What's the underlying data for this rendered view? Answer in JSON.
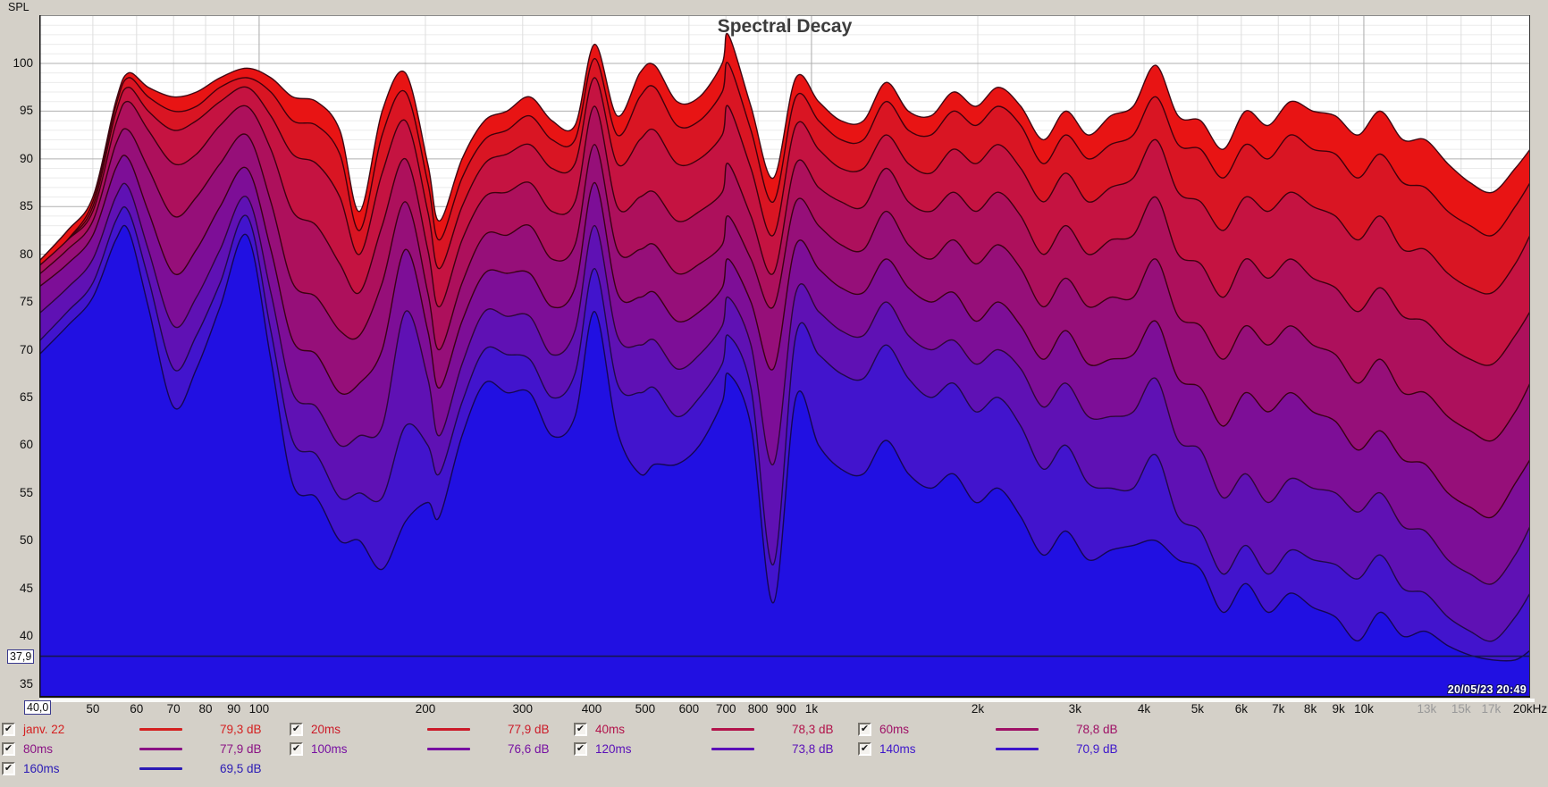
{
  "window": {
    "y_axis_title": "SPL",
    "title": "Spectral Decay",
    "timestamp": "20/05/23 20:49"
  },
  "cursor": {
    "x_label": "40,0",
    "y_label": "37,9",
    "y_db": 37.9,
    "x_freq": 40
  },
  "axes": {
    "y_ticks": [
      {
        "db": 100,
        "label": "100"
      },
      {
        "db": 95,
        "label": "95"
      },
      {
        "db": 90,
        "label": "90"
      },
      {
        "db": 85,
        "label": "85"
      },
      {
        "db": 80,
        "label": "80"
      },
      {
        "db": 75,
        "label": "75"
      },
      {
        "db": 70,
        "label": "70"
      },
      {
        "db": 65,
        "label": "65"
      },
      {
        "db": 60,
        "label": "60"
      },
      {
        "db": 55,
        "label": "55"
      },
      {
        "db": 50,
        "label": "50"
      },
      {
        "db": 45,
        "label": "45"
      },
      {
        "db": 40,
        "label": "40"
      },
      {
        "db": 35,
        "label": "35"
      }
    ],
    "x_ticks": [
      {
        "f": 50,
        "label": "50"
      },
      {
        "f": 60,
        "label": "60"
      },
      {
        "f": 70,
        "label": "70"
      },
      {
        "f": 80,
        "label": "80"
      },
      {
        "f": 90,
        "label": "90"
      },
      {
        "f": 100,
        "label": "100"
      },
      {
        "f": 200,
        "label": "200"
      },
      {
        "f": 300,
        "label": "300"
      },
      {
        "f": 400,
        "label": "400"
      },
      {
        "f": 500,
        "label": "500"
      },
      {
        "f": 600,
        "label": "600"
      },
      {
        "f": 700,
        "label": "700"
      },
      {
        "f": 800,
        "label": "800"
      },
      {
        "f": 900,
        "label": "900"
      },
      {
        "f": 1000,
        "label": "1k"
      },
      {
        "f": 2000,
        "label": "2k"
      },
      {
        "f": 3000,
        "label": "3k"
      },
      {
        "f": 4000,
        "label": "4k"
      },
      {
        "f": 5000,
        "label": "5k"
      },
      {
        "f": 6000,
        "label": "6k"
      },
      {
        "f": 7000,
        "label": "7k"
      },
      {
        "f": 8000,
        "label": "8k"
      },
      {
        "f": 9000,
        "label": "9k"
      },
      {
        "f": 10000,
        "label": "10k"
      },
      {
        "f": 13000,
        "label": "13k",
        "muted": true
      },
      {
        "f": 15000,
        "label": "15k",
        "muted": true
      },
      {
        "f": 17000,
        "label": "17k",
        "muted": true
      },
      {
        "f": 20000,
        "label": "20kHz"
      }
    ],
    "x_gridlines": [
      50,
      60,
      70,
      80,
      90,
      100,
      200,
      300,
      400,
      500,
      600,
      700,
      800,
      900,
      1000,
      2000,
      3000,
      4000,
      5000,
      6000,
      7000,
      8000,
      9000,
      10000,
      13000,
      15000,
      17000,
      20000
    ],
    "x_decade_lines": [
      100,
      1000,
      10000,
      20000
    ]
  },
  "legend": {
    "items": [
      {
        "label": "janv. 22",
        "value": "79,3 dB",
        "color": "#d42020",
        "checked": true
      },
      {
        "label": "20ms",
        "value": "77,9 dB",
        "color": "#cb1a28",
        "checked": true
      },
      {
        "label": "40ms",
        "value": "78,3 dB",
        "color": "#b2124a",
        "checked": true
      },
      {
        "label": "60ms",
        "value": "78,8 dB",
        "color": "#9e1066",
        "checked": true
      },
      {
        "label": "80ms",
        "value": "77,9 dB",
        "color": "#8a1284",
        "checked": true
      },
      {
        "label": "100ms",
        "value": "76,6 dB",
        "color": "#7710a2",
        "checked": true
      },
      {
        "label": "120ms",
        "value": "73,8 dB",
        "color": "#5a10b8",
        "checked": true
      },
      {
        "label": "140ms",
        "value": "70,9 dB",
        "color": "#3d16cb",
        "checked": true
      },
      {
        "label": "160ms",
        "value": "69,5 dB",
        "color": "#2a1ab5",
        "checked": true
      }
    ]
  },
  "chart_data": {
    "type": "area",
    "title": "Spectral Decay",
    "ylabel": "SPL",
    "x_scale": "log",
    "xlim": [
      40,
      20000
    ],
    "ylim": [
      33.5,
      105
    ],
    "grid": true,
    "legend_position": "bottom",
    "cursor_line_db": 37.9,
    "frequencies_hz": [
      40,
      45,
      50,
      55,
      58,
      63,
      70,
      77,
      85,
      95,
      105,
      115,
      127,
      140,
      152,
      167,
      184,
      202,
      212,
      233,
      256,
      281,
      309,
      339,
      373,
      405,
      445,
      489,
      520,
      571,
      627,
      689,
      707,
      777,
      853,
      937,
      1030,
      1131,
      1242,
      1364,
      1498,
      1645,
      1807,
      1984,
      2179,
      2393,
      2628,
      2886,
      3170,
      3481,
      3823,
      4199,
      4611,
      5064,
      5561,
      6107,
      6707,
      7366,
      8089,
      8883,
      9755,
      10713,
      11765,
      12920,
      14189,
      15582,
      17112,
      18792,
      20000
    ],
    "series": [
      {
        "name": "janv. 22",
        "cursor_value_db": 79.3,
        "fill": "#e81414",
        "line": "#33000b",
        "values": [
          79.3,
          82.5,
          86,
          96,
          99,
          97.5,
          96.5,
          97,
          98.5,
          99.5,
          98.5,
          96.5,
          96,
          93,
          84.5,
          95,
          99,
          89.5,
          83.5,
          90,
          94,
          95,
          96.5,
          94,
          93.5,
          102,
          94.5,
          99,
          99.8,
          96,
          96.5,
          100,
          103,
          95.5,
          88,
          98.5,
          96,
          94,
          94,
          98,
          95,
          94.5,
          97,
          95.5,
          97.5,
          95.5,
          92,
          95,
          92.5,
          94.5,
          95.5,
          99.8,
          94.5,
          94,
          91,
          95,
          93.5,
          96,
          95,
          94.5,
          92.5,
          95,
          92,
          92,
          89.5,
          87.5,
          86.5,
          89,
          91
        ]
      },
      {
        "name": "20ms",
        "cursor_value_db": 77.9,
        "fill": "#d91523",
        "line": "#33000b",
        "values": [
          77.9,
          81.5,
          85.5,
          95.5,
          98.5,
          96.5,
          95,
          95.5,
          97.5,
          98.5,
          97,
          94,
          93.5,
          90.5,
          82.5,
          92.5,
          97,
          87.5,
          81.5,
          88,
          92,
          93,
          94.5,
          92,
          92,
          100.5,
          92.5,
          96.5,
          97.5,
          93.5,
          94,
          97,
          100,
          93,
          85.5,
          96.5,
          94,
          92,
          92,
          96,
          93,
          92.5,
          95,
          93.5,
          95.5,
          93.5,
          89.5,
          92.5,
          90,
          91.5,
          92.5,
          96.5,
          91.5,
          91,
          88,
          91.5,
          90,
          92.5,
          91,
          90.5,
          88,
          90.5,
          87.5,
          87,
          84.5,
          83,
          82,
          85,
          87.5
        ]
      },
      {
        "name": "40ms",
        "cursor_value_db": 78.3,
        "fill": "#c51341",
        "line": "#33000b",
        "values": [
          78.3,
          81.5,
          85,
          94.8,
          97.5,
          95,
          93,
          94,
          96,
          97.5,
          94.5,
          90.5,
          89.5,
          86,
          80,
          88.5,
          94,
          84.5,
          78.5,
          85,
          89.5,
          90.5,
          91.5,
          89,
          89.5,
          98.5,
          89.5,
          92,
          93,
          89.5,
          90,
          92.5,
          95.5,
          89,
          82,
          93.5,
          91,
          89,
          89,
          92.5,
          89.5,
          88.5,
          91,
          89.5,
          91.5,
          89,
          85.5,
          88.5,
          85.5,
          87,
          88,
          92,
          86.5,
          85.5,
          82.5,
          86,
          84.5,
          86.5,
          85,
          84,
          81.5,
          84,
          80.5,
          80.5,
          78,
          76.5,
          76,
          79,
          82
        ]
      },
      {
        "name": "60ms",
        "cursor_value_db": 78.8,
        "fill": "#ad105c",
        "line": "#33000b",
        "values": [
          78.8,
          81.5,
          84.5,
          93.6,
          96,
          93,
          89.5,
          90.5,
          93.5,
          95.5,
          91,
          84.5,
          83,
          79,
          76,
          83,
          90,
          80.5,
          74.5,
          81.5,
          86,
          86.5,
          87.5,
          84.5,
          85.5,
          95.5,
          85,
          86,
          86.5,
          83.5,
          84.5,
          86.5,
          89.5,
          84,
          78,
          89.5,
          87,
          85.5,
          85,
          89,
          85.5,
          84.5,
          86.5,
          84.5,
          86.5,
          84,
          80,
          83,
          80,
          81.5,
          82,
          86,
          80,
          79,
          75.5,
          79.5,
          77.5,
          79.5,
          77.5,
          76.5,
          74,
          76.5,
          73.5,
          73,
          70.5,
          69,
          68.5,
          71.5,
          74
        ]
      },
      {
        "name": "80ms",
        "cursor_value_db": 77.9,
        "fill": "#960f79",
        "line": "#33000b",
        "values": [
          77.9,
          80.5,
          83.5,
          91.5,
          93,
          89,
          84,
          86,
          89.5,
          92.5,
          85.5,
          77,
          75.5,
          72,
          71.5,
          77,
          85.5,
          76,
          70,
          77,
          82,
          82,
          83,
          79.5,
          81,
          91.5,
          80.5,
          80.5,
          81,
          78,
          79,
          81,
          84,
          79.5,
          74.5,
          85.5,
          83,
          81,
          80.5,
          84.5,
          81,
          79.5,
          81.5,
          79,
          81,
          78.5,
          74.5,
          77.5,
          74.5,
          75.5,
          75.5,
          79.5,
          73.5,
          72.5,
          69,
          72.5,
          70.5,
          72.5,
          70.5,
          69.5,
          66.5,
          69,
          65.5,
          65.5,
          63,
          61.5,
          60.5,
          63.5,
          66.5
        ]
      },
      {
        "name": "100ms",
        "cursor_value_db": 76.6,
        "fill": "#7d0e97",
        "line": "#33000b",
        "values": [
          76.6,
          79,
          82,
          89,
          90,
          84.5,
          78,
          80.5,
          85,
          89,
          80.5,
          71,
          69.5,
          65.5,
          66.5,
          70,
          80.5,
          72,
          66,
          73,
          78,
          78,
          78,
          74.5,
          76.5,
          87.5,
          76,
          75.5,
          76,
          73,
          74,
          76.5,
          79.5,
          75,
          68,
          81,
          78.5,
          76.5,
          76,
          79.5,
          76.5,
          75,
          76,
          73,
          75,
          72.5,
          69,
          72,
          68.5,
          69,
          69.5,
          73,
          67,
          66,
          62,
          65.5,
          63.5,
          65.5,
          63.5,
          62.5,
          59.5,
          61.5,
          58.5,
          58,
          55,
          53.5,
          52.5,
          56,
          58.5
        ]
      },
      {
        "name": "120ms",
        "cursor_value_db": 73.8,
        "fill": "#5f11b4",
        "line": "#2a0630",
        "values": [
          73.8,
          76.5,
          79.5,
          86,
          87,
          80.5,
          72.5,
          75.5,
          80.5,
          86,
          76,
          65.5,
          64,
          60,
          61,
          62,
          74,
          67,
          61,
          68.5,
          74,
          73.5,
          73.5,
          69.5,
          72,
          83,
          71.5,
          70.5,
          71,
          68,
          69.5,
          72.5,
          75.5,
          70.5,
          58,
          76,
          74,
          72,
          71.5,
          75,
          71.5,
          70,
          71,
          68.5,
          70,
          68,
          64,
          66.5,
          63,
          63,
          63.5,
          67,
          60.5,
          59.5,
          54.5,
          57,
          54,
          56.5,
          55.5,
          55,
          53,
          55,
          51.5,
          51,
          48,
          46.5,
          45.5,
          48.5,
          51.5
        ]
      },
      {
        "name": "140ms",
        "cursor_value_db": 70.9,
        "fill": "#4214cd",
        "line": "#1c0a40",
        "values": [
          70.9,
          74,
          77,
          83.5,
          84.5,
          77.5,
          68,
          71.5,
          77,
          84,
          72,
          60.5,
          59,
          54.5,
          55,
          54.5,
          62,
          60,
          57,
          64.5,
          70,
          69.5,
          69,
          65,
          67.5,
          78.5,
          66.5,
          65.5,
          66,
          63,
          65,
          68.5,
          71.5,
          66,
          47.5,
          71.5,
          69.5,
          67.5,
          67,
          70.5,
          67,
          65,
          66.5,
          63.5,
          65,
          62,
          57.5,
          60,
          56,
          55.5,
          55.5,
          59,
          52.5,
          51,
          46.5,
          49.5,
          46.5,
          49,
          48,
          47.5,
          46,
          48.5,
          45,
          44.5,
          42,
          40.5,
          39.5,
          42,
          44.5
        ]
      },
      {
        "name": "160ms",
        "cursor_value_db": 69.5,
        "fill": "#2110e2",
        "line": "#120648",
        "values": [
          69.5,
          72.5,
          75.5,
          81.5,
          82.5,
          74.5,
          64,
          68,
          74.5,
          82,
          69,
          56,
          54.5,
          50,
          50,
          47,
          52,
          54,
          52.5,
          61,
          66.5,
          65.5,
          65.5,
          61,
          63,
          74,
          61.5,
          57,
          58,
          58,
          60,
          64.5,
          67.5,
          62,
          43.5,
          65,
          60,
          57.5,
          57,
          60.5,
          57,
          55.5,
          57,
          54,
          55.5,
          52.5,
          48.5,
          51,
          48,
          49,
          49.5,
          50,
          48,
          47,
          42.5,
          45.5,
          42.5,
          44.5,
          43,
          42,
          39.5,
          42.5,
          40,
          40.5,
          39,
          38,
          37.5,
          37.5,
          38.5
        ]
      }
    ]
  }
}
